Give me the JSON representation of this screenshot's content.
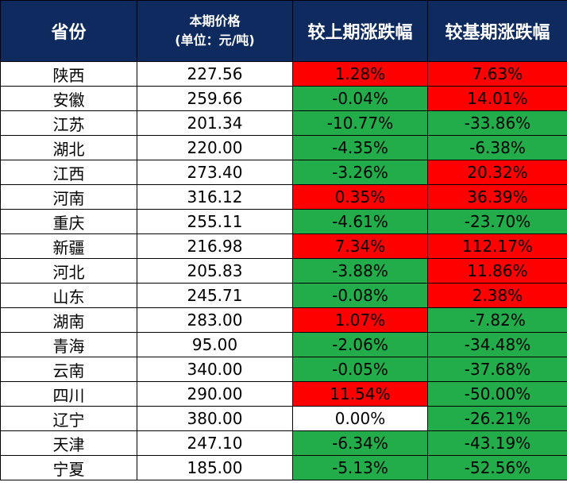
{
  "headers": {
    "province": "省份",
    "price_line1": "本期价格",
    "price_line2": "(单位：元/吨)",
    "change_prev": "较上期涨跌幅",
    "change_base": "较基期涨跌幅"
  },
  "colors": {
    "header_bg": "#0f2a5e",
    "increase": "#ff0000",
    "decrease": "#22ad4a",
    "flat": "#ffffff"
  },
  "rows": [
    {
      "province": "陕西",
      "price": "227.56",
      "change_prev": "1.28%",
      "change_base": "7.63%"
    },
    {
      "province": "安徽",
      "price": "259.66",
      "change_prev": "-0.04%",
      "change_base": "14.01%"
    },
    {
      "province": "江苏",
      "price": "201.34",
      "change_prev": "-10.77%",
      "change_base": "-33.86%"
    },
    {
      "province": "湖北",
      "price": "220.00",
      "change_prev": "-4.35%",
      "change_base": "-6.38%"
    },
    {
      "province": "江西",
      "price": "273.40",
      "change_prev": "-3.26%",
      "change_base": "20.32%"
    },
    {
      "province": "河南",
      "price": "316.12",
      "change_prev": "0.35%",
      "change_base": "36.39%"
    },
    {
      "province": "重庆",
      "price": "255.11",
      "change_prev": "-4.61%",
      "change_base": "-23.70%"
    },
    {
      "province": "新疆",
      "price": "216.98",
      "change_prev": "7.34%",
      "change_base": "112.17%"
    },
    {
      "province": "河北",
      "price": "205.83",
      "change_prev": "-3.88%",
      "change_base": "11.86%"
    },
    {
      "province": "山东",
      "price": "245.71",
      "change_prev": "-0.08%",
      "change_base": "2.38%"
    },
    {
      "province": "湖南",
      "price": "283.00",
      "change_prev": "1.07%",
      "change_base": "-7.82%"
    },
    {
      "province": "青海",
      "price": "95.00",
      "change_prev": "-2.06%",
      "change_base": "-34.48%"
    },
    {
      "province": "云南",
      "price": "340.00",
      "change_prev": "-0.05%",
      "change_base": "-37.68%"
    },
    {
      "province": "四川",
      "price": "290.00",
      "change_prev": "11.54%",
      "change_base": "-50.00%"
    },
    {
      "province": "辽宁",
      "price": "380.00",
      "change_prev": "0.00%",
      "change_base": "-26.21%"
    },
    {
      "province": "天津",
      "price": "247.10",
      "change_prev": "-6.34%",
      "change_base": "-43.19%"
    },
    {
      "province": "宁夏",
      "price": "185.00",
      "change_prev": "-5.13%",
      "change_base": "-52.56%"
    }
  ]
}
